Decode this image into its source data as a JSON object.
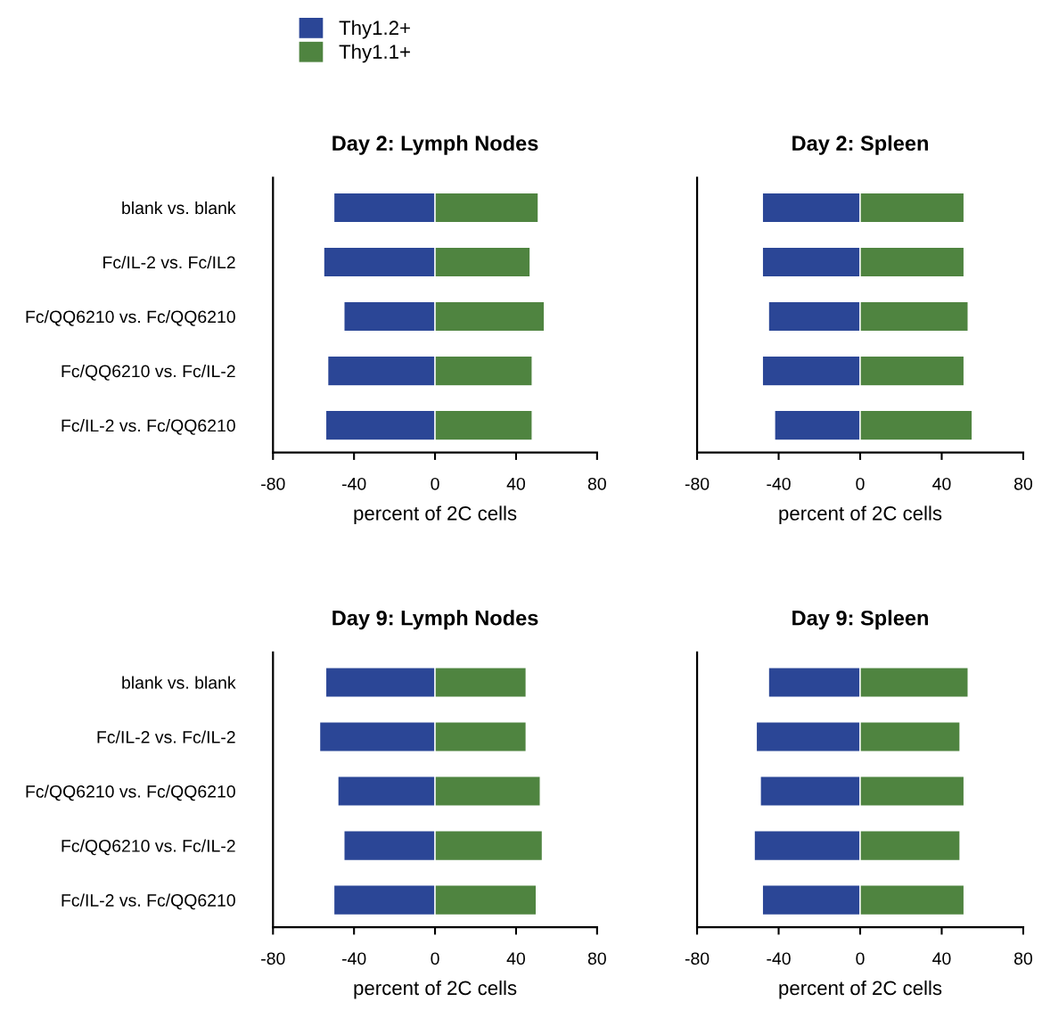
{
  "chart_data": [
    {
      "type": "bar",
      "orientation": "horizontal",
      "stacked": true,
      "title": "Day 2: Lymph Nodes",
      "xlabel": "percent of 2C cells",
      "categories": [
        "blank vs. blank",
        "Fc/IL-2 vs. Fc/IL2",
        "Fc/QQ6210 vs. Fc/QQ6210",
        "Fc/QQ6210 vs. Fc/IL-2",
        "Fc/IL-2 vs. Fc/QQ6210"
      ],
      "xlim": [
        -80,
        80
      ],
      "xticks": [
        -80,
        -40,
        0,
        40,
        80
      ],
      "legend": "top left",
      "series": [
        {
          "name": "Thy1.2+",
          "color": "#2b4696",
          "values": [
            -50,
            -55,
            -45,
            -53,
            -54
          ]
        },
        {
          "name": "Thy1.1+",
          "color": "#4f8440",
          "values": [
            51,
            47,
            54,
            48,
            48
          ]
        }
      ]
    },
    {
      "type": "bar",
      "orientation": "horizontal",
      "stacked": true,
      "title": "Day 2: Spleen",
      "xlabel": "percent of 2C cells",
      "categories": [
        null,
        null,
        null,
        null,
        null
      ],
      "xlim": [
        -80,
        80
      ],
      "xticks": [
        -80,
        -40,
        0,
        40,
        80
      ],
      "series": [
        {
          "color": "#2b4696",
          "values": [
            -48,
            -48,
            -45,
            -48,
            -42
          ]
        },
        {
          "color": "#4f8440",
          "values": [
            51,
            51,
            53,
            51,
            55
          ]
        }
      ]
    },
    {
      "type": "bar",
      "orientation": "horizontal",
      "stacked": true,
      "title": "Day 9: Lymph Nodes",
      "xlabel": "percent of 2C cells",
      "categories": [
        "blank vs. blank",
        "Fc/IL-2 vs. Fc/IL-2",
        "Fc/QQ6210 vs. Fc/QQ6210",
        "Fc/QQ6210 vs. Fc/IL-2",
        "Fc/IL-2 vs. Fc/QQ6210"
      ],
      "xlim": [
        -80,
        80
      ],
      "xticks": [
        -80,
        -40,
        0,
        40,
        80
      ],
      "series": [
        {
          "color": "#2b4696",
          "values": [
            -54,
            -57,
            -48,
            -45,
            -50
          ]
        },
        {
          "color": "#4f8440",
          "values": [
            45,
            45,
            52,
            53,
            50
          ]
        }
      ]
    },
    {
      "type": "bar",
      "orientation": "horizontal",
      "stacked": true,
      "title": "Day 9: Spleen",
      "xlabel": "percent of 2C cells",
      "categories": [
        null,
        null,
        null,
        null,
        null
      ],
      "xlim": [
        -80,
        80
      ],
      "xticks": [
        -80,
        -40,
        0,
        40,
        80
      ],
      "series": [
        {
          "color": "#2b4696",
          "values": [
            -45,
            -51,
            -49,
            -52,
            -48
          ]
        },
        {
          "color": "#4f8440",
          "values": [
            53,
            49,
            51,
            49,
            51
          ]
        }
      ]
    }
  ]
}
